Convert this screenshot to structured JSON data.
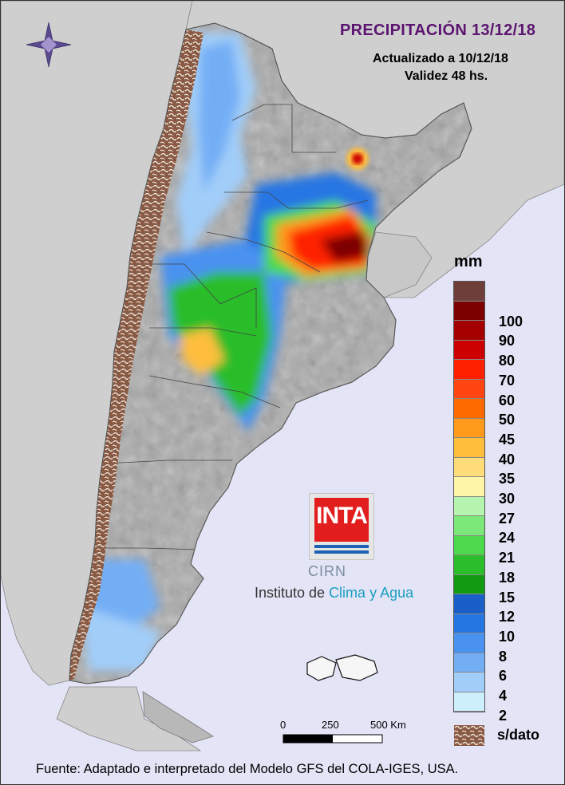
{
  "map": {
    "title": "PRECIPITACIÓN 13/12/18",
    "updated": "Actualizado a 10/12/18",
    "validity": "Validez 48 hs.",
    "footer": "Fuente: Adaptado e interpretado del Modelo GFS del COLA-IGES, USA."
  },
  "legend": {
    "unit": "mm",
    "classes": [
      {
        "label": "",
        "color": "#6e3f3a"
      },
      {
        "label": "100",
        "color": "#7d0000"
      },
      {
        "label": "90",
        "color": "#a50000"
      },
      {
        "label": "80",
        "color": "#cc0000"
      },
      {
        "label": "70",
        "color": "#ff2000"
      },
      {
        "label": "60",
        "color": "#ff4612"
      },
      {
        "label": "50",
        "color": "#ff6a00"
      },
      {
        "label": "45",
        "color": "#ff9a1a"
      },
      {
        "label": "40",
        "color": "#ffbe3c"
      },
      {
        "label": "35",
        "color": "#ffdc7a"
      },
      {
        "label": "30",
        "color": "#fff5a6"
      },
      {
        "label": "27",
        "color": "#b6f5b0"
      },
      {
        "label": "24",
        "color": "#7de87a"
      },
      {
        "label": "21",
        "color": "#4cd94c"
      },
      {
        "label": "18",
        "color": "#2bbd2b"
      },
      {
        "label": "15",
        "color": "#129a12"
      },
      {
        "label": "12",
        "color": "#1a5fc8"
      },
      {
        "label": "10",
        "color": "#2576e3"
      },
      {
        "label": "8",
        "color": "#4a92f0"
      },
      {
        "label": "6",
        "color": "#73aef5"
      },
      {
        "label": "4",
        "color": "#a1cdf9"
      },
      {
        "label": "2",
        "color": "#cdeefb"
      }
    ],
    "nodata_label": "s/dato",
    "nodata_color": "#8a5a44"
  },
  "scalebar": {
    "labels": [
      "0",
      "250",
      "500 Km"
    ]
  },
  "logo": {
    "inta": "INTA",
    "cirn": "CIRN",
    "institute_prefix": "Instituto de ",
    "institute_highlight": "Clima y Agua"
  },
  "colors": {
    "ocean": "#e4e4f7",
    "neighbor": "#cfcfcf",
    "relief": "#a9a9a9",
    "title": "#5b1470"
  }
}
